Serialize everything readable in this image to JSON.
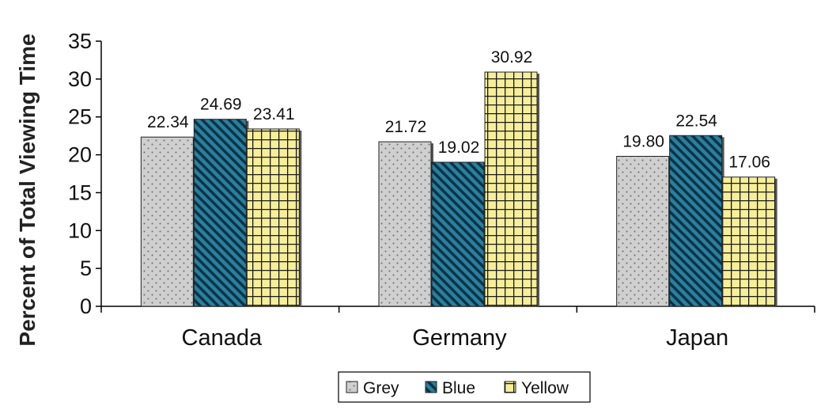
{
  "chart_data": {
    "type": "bar",
    "ylabel": "Percent of Total Viewing Time",
    "xlabel": "",
    "categories": [
      "Canada",
      "Germany",
      "Japan"
    ],
    "ylim": [
      0,
      35
    ],
    "yticks": [
      0,
      5,
      10,
      15,
      20,
      25,
      30,
      35
    ],
    "series": [
      {
        "name": "Grey",
        "values": [
          22.34,
          21.72,
          19.8
        ],
        "value_labels": [
          "22.34",
          "21.72",
          "19.80"
        ],
        "color": "#cfcfcf",
        "pattern": "dots"
      },
      {
        "name": "Blue",
        "values": [
          24.69,
          19.02,
          22.54
        ],
        "value_labels": [
          "24.69",
          "19.02",
          "22.54"
        ],
        "color": "#2a7f9f",
        "pattern": "diagonal-stripes"
      },
      {
        "name": "Yellow",
        "values": [
          23.41,
          30.92,
          17.06
        ],
        "value_labels": [
          "23.41",
          "30.92",
          "17.06"
        ],
        "color": "#f6ee9a",
        "pattern": "grid"
      }
    ],
    "grid": false,
    "legend": "bottom"
  }
}
